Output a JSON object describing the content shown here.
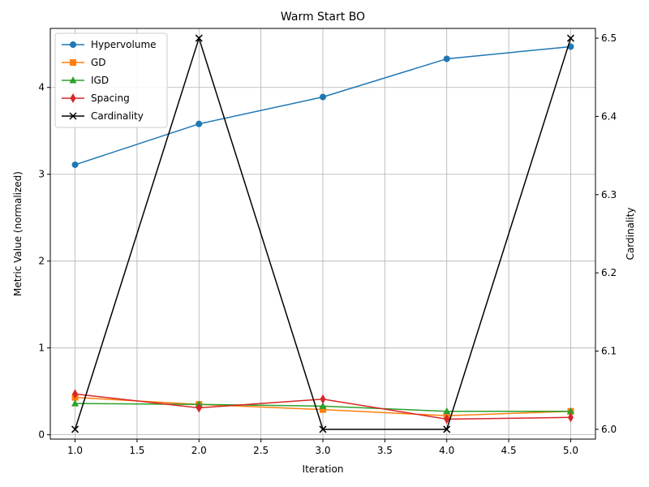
{
  "chart_data": {
    "type": "line",
    "title": "Warm Start BO",
    "xlabel": "Iteration",
    "ylabel": "Metric Value (normalized)",
    "y2label": "Cardinality",
    "x": [
      1.0,
      2.0,
      3.0,
      4.0,
      5.0
    ],
    "xlim": [
      0.8,
      5.2
    ],
    "ylim": [
      -0.05,
      4.68
    ],
    "y2lim": [
      5.9875,
      6.5125
    ],
    "xticks": [
      "1.0",
      "1.5",
      "2.0",
      "2.5",
      "3.0",
      "3.5",
      "4.0",
      "4.5",
      "5.0"
    ],
    "yticks": [
      "0",
      "1",
      "2",
      "3",
      "4"
    ],
    "y2ticks": [
      "6.0",
      "6.1",
      "6.2",
      "6.3",
      "6.4",
      "6.5"
    ],
    "grid": true,
    "legend_position": "upper-left",
    "series": [
      {
        "name": "Hypervolume",
        "axis": "left",
        "color": "#1f77b4",
        "marker": "circle",
        "values": [
          3.11,
          3.58,
          3.89,
          4.33,
          4.47
        ]
      },
      {
        "name": "GD",
        "axis": "left",
        "color": "#ff7f0e",
        "marker": "square",
        "values": [
          0.43,
          0.35,
          0.29,
          0.22,
          0.27
        ]
      },
      {
        "name": "IGD",
        "axis": "left",
        "color": "#2ca02c",
        "marker": "triangle",
        "values": [
          0.36,
          0.35,
          0.33,
          0.27,
          0.27
        ]
      },
      {
        "name": "Spacing",
        "axis": "left",
        "color": "#d62728",
        "marker": "diamond",
        "values": [
          0.47,
          0.31,
          0.41,
          0.18,
          0.2
        ]
      },
      {
        "name": "Cardinality",
        "axis": "right",
        "color": "#000000",
        "marker": "x",
        "values": [
          6.0,
          6.5,
          6.0,
          6.0,
          6.5
        ]
      }
    ]
  }
}
